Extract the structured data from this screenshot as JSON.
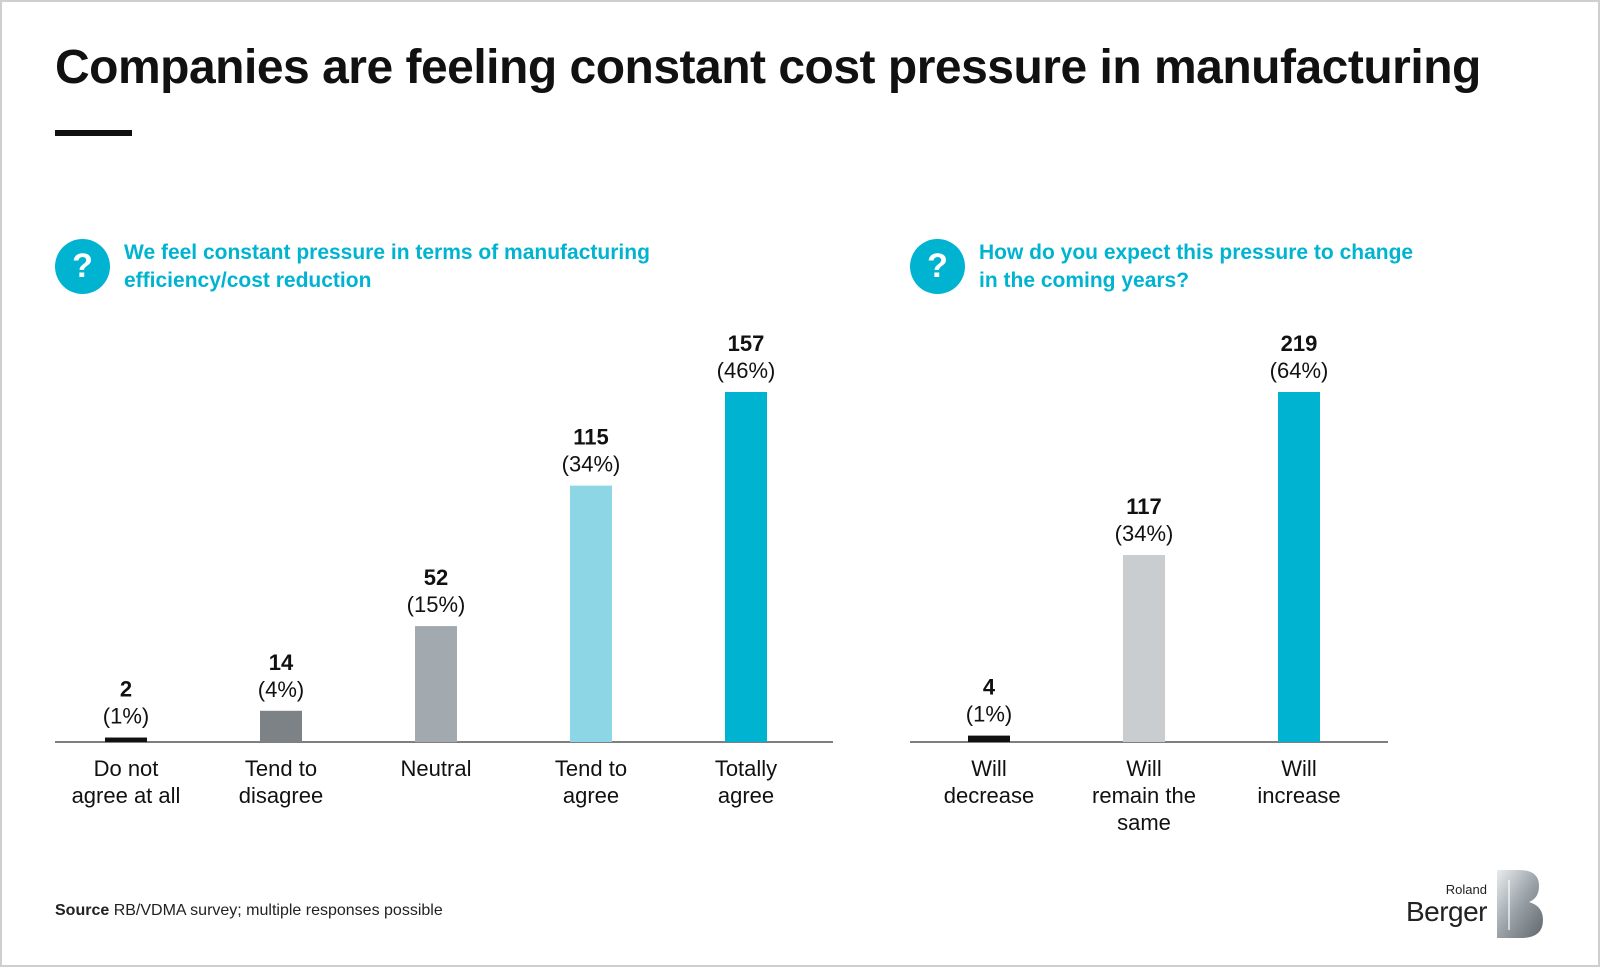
{
  "header": {
    "title": "Companies are feeling constant cost pressure in manufacturing"
  },
  "left_question": {
    "icon": "question-icon",
    "symbol": "?",
    "line1": "We feel constant pressure in terms of manufacturing",
    "line2": "efficiency/cost reduction"
  },
  "right_question": {
    "icon": "question-icon",
    "symbol": "?",
    "line1": "How do you expect this pressure to change",
    "line2": "in the coming years?"
  },
  "footer": {
    "source_label": "Source",
    "source_text": "RB/VDMA survey; multiple responses possible"
  },
  "logo": {
    "top": "Roland",
    "bottom": "Berger"
  },
  "colors": {
    "accent": "#00b4d1",
    "text": "#111111"
  },
  "chart_data": [
    {
      "type": "bar",
      "categories": [
        [
          "Do not",
          "agree at all"
        ],
        [
          "Tend to",
          "disagree"
        ],
        [
          "Neutral"
        ],
        [
          "Tend to",
          "agree"
        ],
        [
          "Totally",
          "agree"
        ]
      ],
      "values": [
        2,
        14,
        52,
        115,
        157
      ],
      "percent_labels": [
        "(1%)",
        "(4%)",
        "(15%)",
        "(34%)",
        "(46%)"
      ],
      "colors": [
        "#111111",
        "#7d8287",
        "#a2aab0",
        "#8dd6e5",
        "#00b4d1"
      ],
      "ylim": [
        0,
        157
      ]
    },
    {
      "type": "bar",
      "categories": [
        [
          "Will",
          "decrease"
        ],
        [
          "Will",
          "remain the",
          "same"
        ],
        [
          "Will",
          "increase"
        ]
      ],
      "values": [
        4,
        117,
        219
      ],
      "percent_labels": [
        "(1%)",
        "(34%)",
        "(64%)"
      ],
      "colors": [
        "#111111",
        "#c9cdd0",
        "#00b4d1"
      ],
      "ylim": [
        0,
        219
      ]
    }
  ]
}
